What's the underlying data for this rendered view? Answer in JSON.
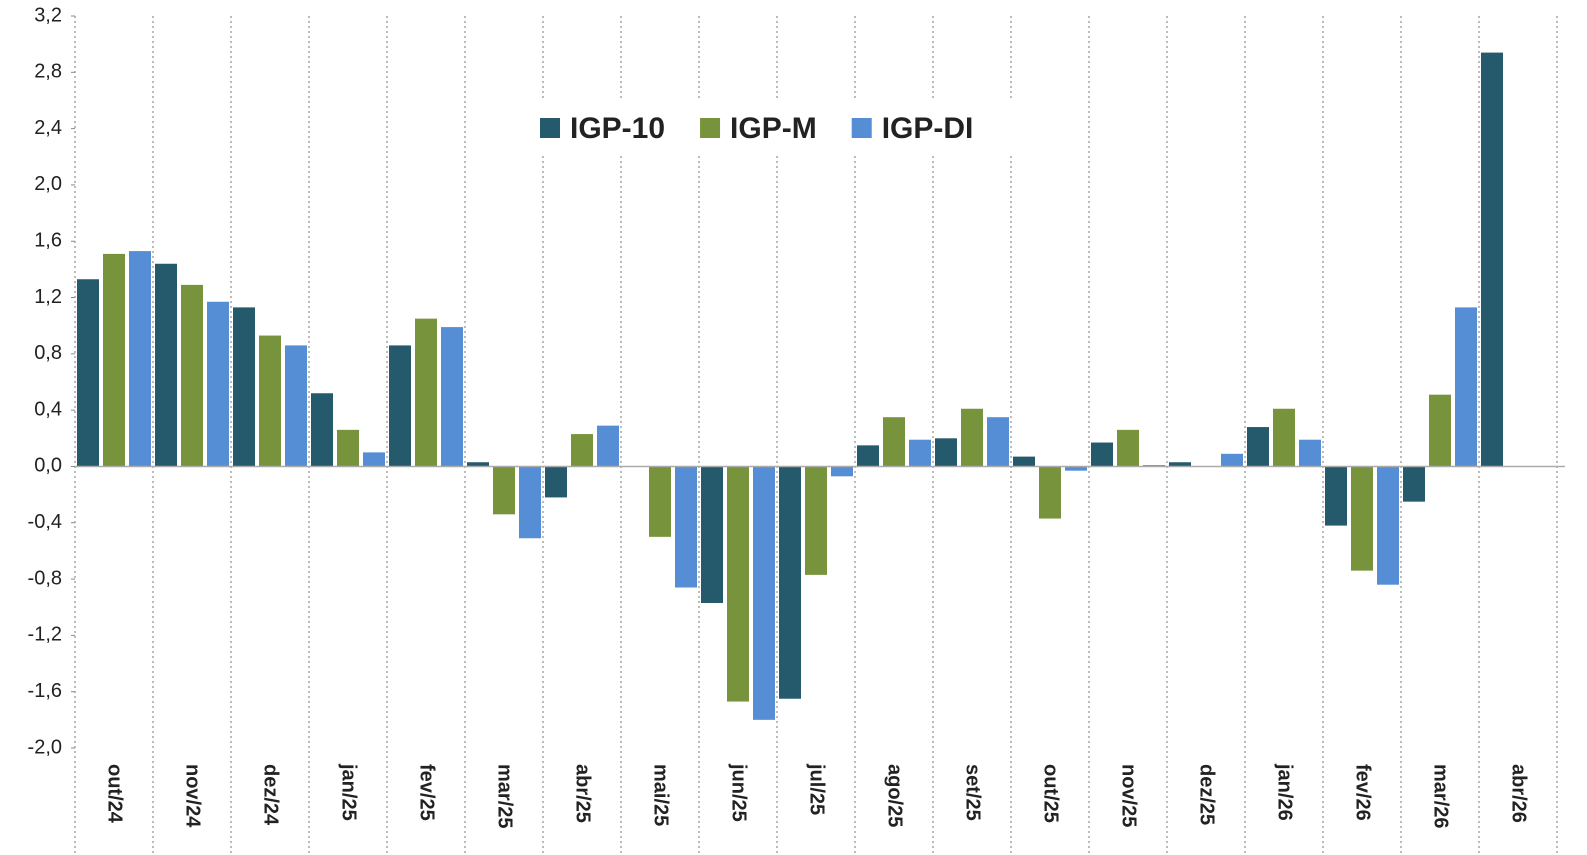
{
  "chart_data": {
    "type": "bar",
    "categories": [
      "out/24",
      "nov/24",
      "dez/24",
      "jan/25",
      "fev/25",
      "mar/25",
      "abr/25",
      "mai/25",
      "jun/25",
      "jul/25",
      "ago/25",
      "set/25",
      "out/25",
      "nov/25",
      "dez/25",
      "jan/26",
      "fev/26",
      "mar/26",
      "abr/26"
    ],
    "series": [
      {
        "name": "IGP-10",
        "color": "#245a6b",
        "values": [
          1.33,
          1.44,
          1.13,
          0.52,
          0.86,
          0.03,
          -0.22,
          null,
          -0.97,
          -1.65,
          0.15,
          0.2,
          0.07,
          0.17,
          0.03,
          0.28,
          -0.42,
          -0.25,
          2.94
        ]
      },
      {
        "name": "IGP-M",
        "color": "#77933c",
        "values": [
          1.51,
          1.29,
          0.93,
          0.26,
          1.05,
          -0.34,
          0.23,
          -0.5,
          -1.67,
          -0.77,
          0.35,
          0.41,
          -0.37,
          0.26,
          null,
          0.41,
          -0.74,
          0.51,
          null
        ]
      },
      {
        "name": "IGP-DI",
        "color": "#558ed5",
        "values": [
          1.53,
          1.17,
          0.86,
          0.1,
          0.99,
          -0.51,
          0.29,
          -0.86,
          -1.8,
          -0.07,
          0.19,
          0.35,
          -0.03,
          0.01,
          0.09,
          0.19,
          -0.84,
          1.13,
          null
        ]
      }
    ],
    "ylim": [
      -2.0,
      3.2
    ],
    "yticks": [
      {
        "value": -2.0,
        "label": "-2,0"
      },
      {
        "value": -1.6,
        "label": "-1,6"
      },
      {
        "value": -1.2,
        "label": "-1,2"
      },
      {
        "value": -0.8,
        "label": "-0,8"
      },
      {
        "value": -0.4,
        "label": "-0,4"
      },
      {
        "value": 0,
        "label": "0,0"
      },
      {
        "value": 0.4,
        "label": "0,4"
      },
      {
        "value": 0.8,
        "label": "0,8"
      },
      {
        "value": 1.2,
        "label": "1,2"
      },
      {
        "value": 1.6,
        "label": "1,6"
      },
      {
        "value": 2.0,
        "label": "2,0"
      },
      {
        "value": 2.4,
        "label": "2,4"
      },
      {
        "value": 2.8,
        "label": "2,8"
      },
      {
        "value": 3.2,
        "label": "3,2"
      }
    ],
    "legend": "top"
  }
}
